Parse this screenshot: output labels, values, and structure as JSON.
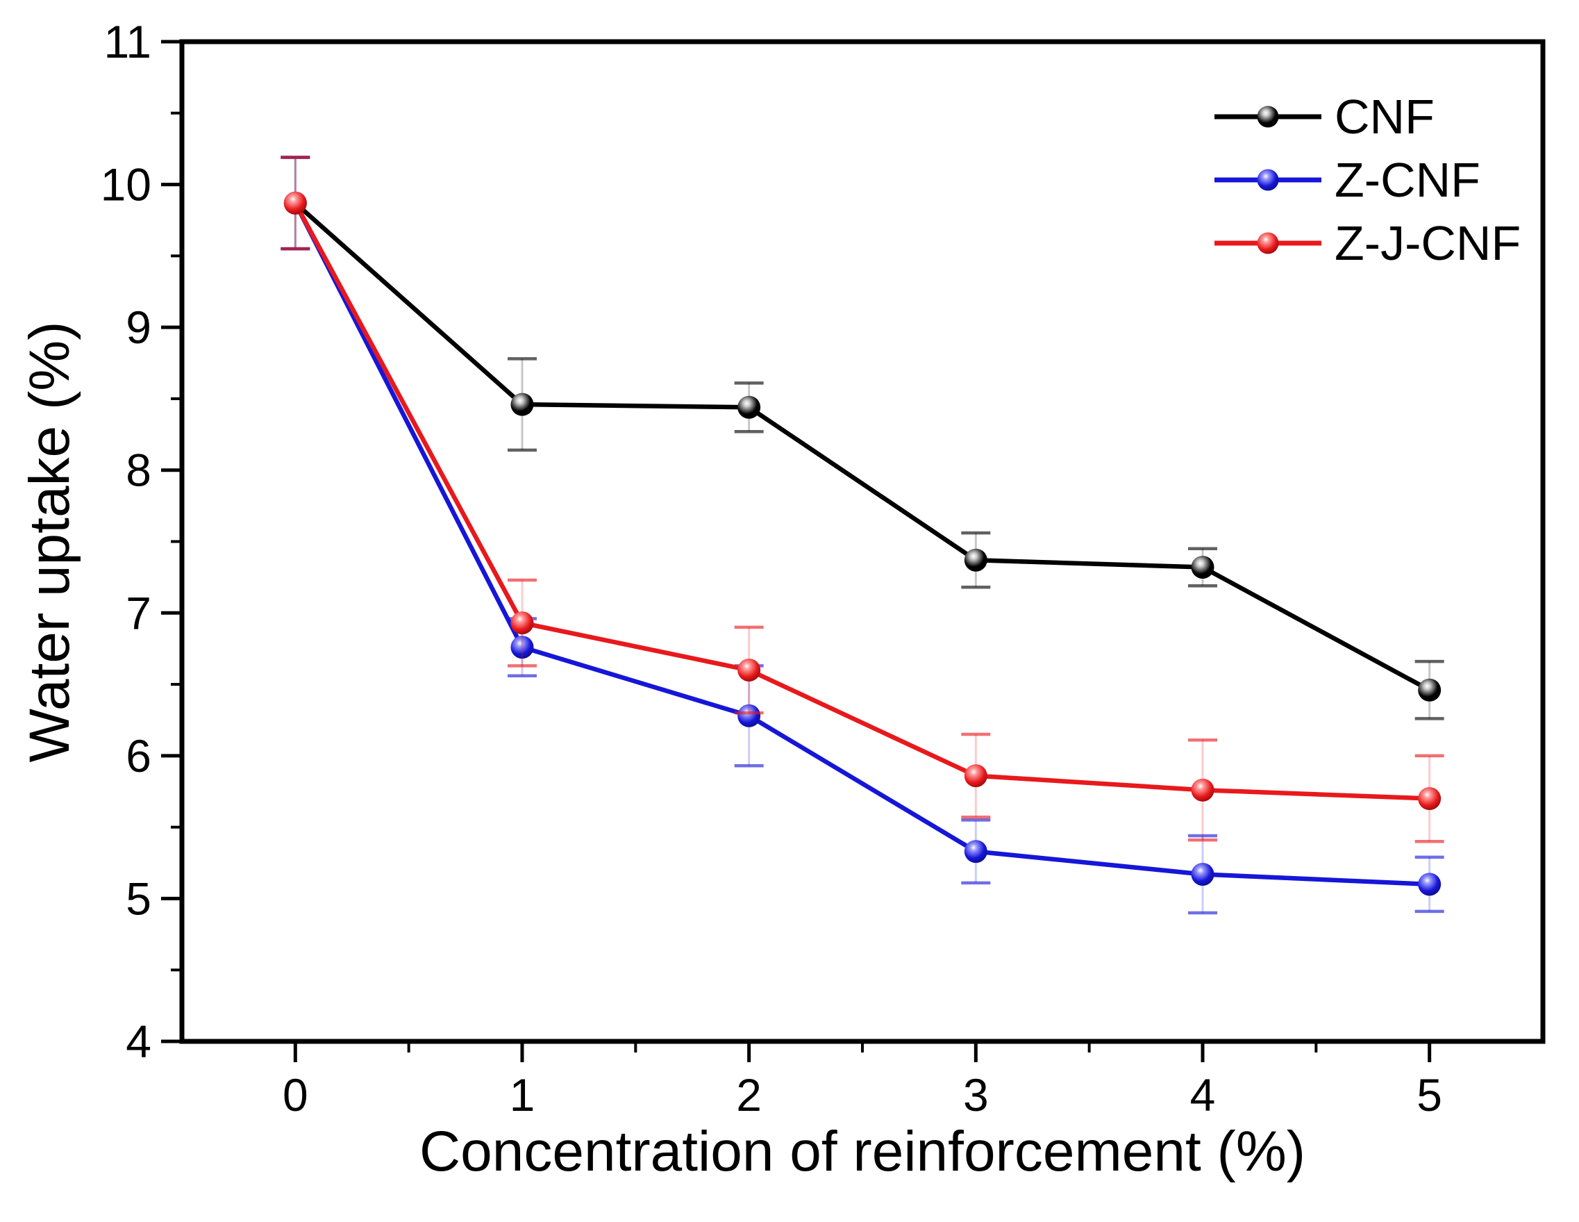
{
  "figure": {
    "background": "#ffffff",
    "text_color": "#000000"
  },
  "chart_data": {
    "type": "line",
    "title": "",
    "xlabel": "Concentration of reinforcement (%)",
    "ylabel": "Water uptake (%)",
    "x": [
      0,
      1,
      2,
      3,
      4,
      5
    ],
    "xlim": [
      -0.5,
      5.5
    ],
    "ylim": [
      4,
      11
    ],
    "x_major_ticks": [
      0,
      1,
      2,
      3,
      4,
      5
    ],
    "y_major_ticks": [
      4,
      5,
      6,
      7,
      8,
      9,
      10,
      11
    ],
    "minor_tick_step": 0.5,
    "grid": false,
    "error_bars": true,
    "legend_position": "top-right-inside",
    "series": [
      {
        "name": "CNF",
        "color": "#000000",
        "highlight": "#c8c8c8",
        "shadow": "#000000",
        "values": [
          9.87,
          8.46,
          8.44,
          7.37,
          7.32,
          6.46
        ],
        "errors": [
          0.32,
          0.32,
          0.17,
          0.19,
          0.13,
          0.2
        ]
      },
      {
        "name": "Z-CNF",
        "color": "#1616d8",
        "highlight": "#9a9aff",
        "shadow": "#0a0a6e",
        "values": [
          9.87,
          6.76,
          6.28,
          5.33,
          5.17,
          5.1
        ],
        "errors": [
          0.32,
          0.2,
          0.35,
          0.22,
          0.27,
          0.19
        ]
      },
      {
        "name": "Z-J-CNF",
        "color": "#e8191c",
        "highlight": "#ff9a9a",
        "shadow": "#7d0305",
        "values": [
          9.87,
          6.93,
          6.6,
          5.86,
          5.76,
          5.7
        ],
        "errors": [
          0.32,
          0.3,
          0.3,
          0.29,
          0.35,
          0.3
        ]
      }
    ]
  }
}
